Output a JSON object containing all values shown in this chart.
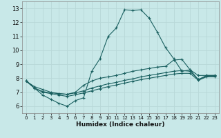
{
  "xlabel": "Humidex (Indice chaleur)",
  "xlim": [
    -0.5,
    23.5
  ],
  "ylim": [
    5.5,
    13.5
  ],
  "xticks": [
    0,
    1,
    2,
    3,
    4,
    5,
    6,
    7,
    8,
    9,
    10,
    11,
    12,
    13,
    14,
    15,
    16,
    17,
    18,
    19,
    20,
    21,
    22,
    23
  ],
  "yticks": [
    6,
    7,
    8,
    9,
    10,
    11,
    12,
    13
  ],
  "background_color": "#c8e8e8",
  "grid_color": "#e0f0f0",
  "line_color": "#1a6060",
  "lines": [
    {
      "x": [
        0,
        1,
        2,
        3,
        4,
        5,
        6,
        7,
        8,
        9,
        10,
        11,
        12,
        13,
        14,
        15,
        16,
        17,
        18,
        19,
        20,
        21,
        22,
        23
      ],
      "y": [
        7.8,
        7.3,
        6.8,
        6.5,
        6.2,
        6.0,
        6.4,
        6.6,
        8.5,
        9.4,
        11.0,
        11.6,
        12.9,
        12.85,
        12.9,
        12.3,
        11.3,
        10.2,
        9.4,
        8.5,
        8.6,
        7.9,
        8.2,
        8.2
      ]
    },
    {
      "x": [
        0,
        1,
        2,
        3,
        4,
        5,
        6,
        7,
        8,
        9,
        10,
        11,
        12,
        13,
        14,
        15,
        16,
        17,
        18,
        19,
        20,
        21,
        22,
        23
      ],
      "y": [
        7.8,
        7.4,
        7.2,
        7.0,
        6.9,
        6.85,
        7.0,
        7.5,
        7.8,
        8.0,
        8.1,
        8.2,
        8.35,
        8.5,
        8.6,
        8.7,
        8.8,
        8.85,
        9.3,
        9.35,
        8.6,
        8.2,
        8.2,
        8.2
      ]
    },
    {
      "x": [
        0,
        1,
        2,
        3,
        4,
        5,
        6,
        7,
        8,
        9,
        10,
        11,
        12,
        13,
        14,
        15,
        16,
        17,
        18,
        19,
        20,
        21,
        22,
        23
      ],
      "y": [
        7.8,
        7.3,
        7.05,
        6.95,
        6.9,
        6.85,
        6.95,
        7.1,
        7.3,
        7.45,
        7.6,
        7.7,
        7.85,
        7.95,
        8.1,
        8.2,
        8.3,
        8.4,
        8.5,
        8.55,
        8.5,
        7.9,
        8.15,
        8.15
      ]
    },
    {
      "x": [
        0,
        1,
        2,
        3,
        4,
        5,
        6,
        7,
        8,
        9,
        10,
        11,
        12,
        13,
        14,
        15,
        16,
        17,
        18,
        19,
        20,
        21,
        22,
        23
      ],
      "y": [
        7.8,
        7.3,
        7.0,
        6.9,
        6.8,
        6.7,
        6.82,
        6.95,
        7.1,
        7.25,
        7.4,
        7.52,
        7.65,
        7.78,
        7.9,
        8.0,
        8.1,
        8.2,
        8.3,
        8.35,
        8.35,
        7.85,
        8.1,
        8.1
      ]
    }
  ]
}
